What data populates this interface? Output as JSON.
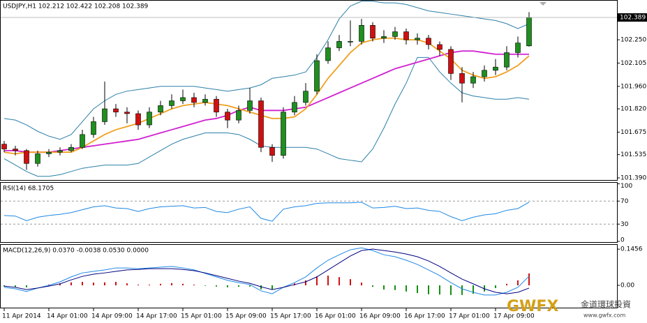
{
  "header": "USDJPY,H1  102.212 102.422 102.208 102.389",
  "watermark": {
    "brand": "GWFX",
    "name": "金道環球投資",
    "url": "www.gwfx.com"
  },
  "chart_data": [
    {
      "type": "candlestick",
      "x": [
        0,
        1,
        2,
        3,
        4,
        5,
        6,
        7,
        8,
        9,
        10,
        11,
        12,
        13,
        14,
        15,
        16,
        17,
        18,
        19,
        20,
        21,
        22,
        23,
        24,
        25,
        26,
        27,
        28,
        29,
        30,
        31,
        32,
        33,
        34,
        35,
        36,
        37,
        38,
        39,
        40,
        41,
        42,
        43,
        44,
        45,
        46,
        47
      ],
      "xlim": [
        -0.375,
        54.875
      ],
      "xticks": [
        {
          "value": 0,
          "label": "11 Apr 2014"
        },
        {
          "value": 4,
          "label": "14 Apr 01:00"
        },
        {
          "value": 8,
          "label": "14 Apr 09:00"
        },
        {
          "value": 12,
          "label": "14 Apr 17:00"
        },
        {
          "value": 16,
          "label": "15 Apr 01:00"
        },
        {
          "value": 20,
          "label": "15 Apr 09:00"
        },
        {
          "value": 24,
          "label": "15 Apr 17:00"
        },
        {
          "value": 28,
          "label": "16 Apr 01:00"
        },
        {
          "value": 32,
          "label": "16 Apr 09:00"
        },
        {
          "value": 36,
          "label": "16 Apr 17:00"
        },
        {
          "value": 40,
          "label": "17 Apr 01:00"
        },
        {
          "value": 44,
          "label": "17 Apr 09:00"
        }
      ],
      "open": [
        101.6,
        101.57,
        101.56,
        101.48,
        101.54,
        101.55,
        101.56,
        101.58,
        101.66,
        101.74,
        101.82,
        101.8,
        101.79,
        101.72,
        101.8,
        101.84,
        101.87,
        101.89,
        101.86,
        101.88,
        101.8,
        101.75,
        101.81,
        101.87,
        101.58,
        101.53,
        101.8,
        101.86,
        101.93,
        102.12,
        102.2,
        102.24,
        102.24,
        102.34,
        102.26,
        102.27,
        102.3,
        102.25,
        102.26,
        102.22,
        102.19,
        102.04,
        101.98,
        102.02,
        102.06,
        102.08,
        102.17,
        102.212
      ],
      "high": [
        101.62,
        101.59,
        101.57,
        101.56,
        101.57,
        101.58,
        101.6,
        101.69,
        101.77,
        101.99,
        101.85,
        101.83,
        101.81,
        101.83,
        101.87,
        101.91,
        101.94,
        101.92,
        101.91,
        101.9,
        101.82,
        101.84,
        101.95,
        101.89,
        101.6,
        101.83,
        101.9,
        101.98,
        102.16,
        102.24,
        102.28,
        102.37,
        102.38,
        102.36,
        102.31,
        102.33,
        102.32,
        102.29,
        102.28,
        102.24,
        102.21,
        102.08,
        102.05,
        102.09,
        102.13,
        102.21,
        102.27,
        102.422
      ],
      "low": [
        101.55,
        101.53,
        101.44,
        101.46,
        101.52,
        101.53,
        101.55,
        101.57,
        101.64,
        101.72,
        101.77,
        101.73,
        101.69,
        101.7,
        101.78,
        101.82,
        101.85,
        101.83,
        101.84,
        101.77,
        101.7,
        101.73,
        101.79,
        101.55,
        101.49,
        101.51,
        101.78,
        101.84,
        101.91,
        102.1,
        102.18,
        102.21,
        102.22,
        102.24,
        102.23,
        102.25,
        102.22,
        102.22,
        102.19,
        102.15,
        102.0,
        101.86,
        101.95,
        101.99,
        102.03,
        102.06,
        102.14,
        102.208
      ],
      "close": [
        101.57,
        101.56,
        101.48,
        101.54,
        101.55,
        101.56,
        101.58,
        101.66,
        101.74,
        101.82,
        101.8,
        101.79,
        101.72,
        101.8,
        101.84,
        101.87,
        101.89,
        101.86,
        101.88,
        101.8,
        101.75,
        101.81,
        101.87,
        101.58,
        101.53,
        101.8,
        101.86,
        101.93,
        102.12,
        102.2,
        102.24,
        102.24,
        102.34,
        102.26,
        102.27,
        102.3,
        102.25,
        102.26,
        102.22,
        102.19,
        102.04,
        101.98,
        102.02,
        102.06,
        102.08,
        102.17,
        102.23,
        102.389
      ],
      "up_color": "#1f8f1f",
      "down_color": "#d01010",
      "lines": [
        {
          "color": "#2b7fa8",
          "values": [
            101.76,
            101.75,
            101.72,
            101.68,
            101.65,
            101.63,
            101.66,
            101.74,
            101.82,
            101.87,
            101.91,
            101.93,
            101.94,
            101.95,
            101.96,
            101.96,
            101.96,
            101.96,
            101.95,
            101.94,
            101.93,
            101.94,
            101.95,
            101.97,
            102.01,
            102.02,
            102.03,
            102.05,
            102.14,
            102.25,
            102.38,
            102.46,
            102.49,
            102.49,
            102.48,
            102.48,
            102.47,
            102.45,
            102.43,
            102.42,
            102.41,
            102.4,
            102.39,
            102.38,
            102.37,
            102.35,
            102.32,
            102.35
          ]
        },
        {
          "color": "#2b7fa8",
          "values": [
            101.51,
            101.47,
            101.43,
            101.4,
            101.4,
            101.41,
            101.43,
            101.45,
            101.46,
            101.47,
            101.47,
            101.47,
            101.48,
            101.52,
            101.56,
            101.6,
            101.63,
            101.65,
            101.67,
            101.67,
            101.67,
            101.66,
            101.63,
            101.59,
            101.58,
            101.58,
            101.58,
            101.58,
            101.57,
            101.54,
            101.51,
            101.5,
            101.49,
            101.57,
            101.7,
            101.85,
            101.98,
            102.14,
            102.14,
            102.05,
            101.98,
            101.92,
            101.9,
            101.89,
            101.88,
            101.88,
            101.89,
            101.88
          ]
        },
        {
          "color": "#d020d0",
          "values": [
            101.56,
            101.56,
            101.55,
            101.55,
            101.55,
            101.56,
            101.57,
            101.58,
            101.59,
            101.6,
            101.61,
            101.62,
            101.63,
            101.65,
            101.67,
            101.69,
            101.71,
            101.73,
            101.75,
            101.76,
            101.78,
            101.81,
            101.83,
            101.81,
            101.81,
            101.81,
            101.82,
            101.83,
            101.86,
            101.89,
            101.92,
            101.95,
            101.98,
            102.01,
            102.04,
            102.07,
            102.09,
            102.11,
            102.13,
            102.15,
            102.17,
            102.18,
            102.18,
            102.17,
            102.16,
            102.16,
            102.16,
            102.16
          ]
        },
        {
          "color": "#f0a020",
          "values": [
            101.55,
            101.54,
            101.55,
            101.55,
            101.55,
            101.55,
            101.55,
            101.58,
            101.62,
            101.66,
            101.69,
            101.71,
            101.73,
            101.76,
            101.79,
            101.82,
            101.84,
            101.85,
            101.86,
            101.85,
            101.84,
            101.82,
            101.8,
            101.78,
            101.76,
            101.76,
            101.77,
            101.82,
            101.91,
            102.01,
            102.09,
            102.17,
            102.23,
            102.25,
            102.26,
            102.26,
            102.25,
            102.25,
            102.23,
            102.18,
            102.13,
            102.06,
            102.03,
            102.01,
            102.02,
            102.05,
            102.09,
            102.15
          ]
        }
      ],
      "ylim": [
        101.377,
        102.489
      ],
      "yticks": [
        {
          "value": 102.25,
          "label": "102.250"
        },
        102.105,
        {
          "value": 101.96,
          "label": "101.960"
        },
        {
          "value": 101.82,
          "label": "101.820"
        },
        101.675,
        101.535,
        {
          "value": 101.39,
          "label": "101.390"
        }
      ],
      "last_price": 102.389
    },
    {
      "type": "line",
      "title": "RSI(14) 68.1705",
      "color": "#1e88e5",
      "values": [
        45,
        44,
        36,
        42,
        45,
        47,
        50,
        55,
        60,
        62,
        58,
        57,
        52,
        57,
        60,
        61,
        62,
        58,
        59,
        52,
        50,
        56,
        60,
        40,
        35,
        56,
        60,
        62,
        66,
        67,
        67,
        67,
        68,
        58,
        59,
        61,
        57,
        58,
        54,
        52,
        43,
        36,
        42,
        46,
        48,
        54,
        57,
        68.1705
      ],
      "ylim": [
        0,
        100
      ],
      "yticks": [
        100,
        70,
        30,
        0
      ],
      "grid": "dashed"
    },
    {
      "type": "bar",
      "title": "MACD(12,26,9) 0.0370 -0.0038 0.0530 0.0000",
      "up_color": "#d01010",
      "down_color": "#119011",
      "values": [
        -0.005,
        -0.006,
        -0.008,
        0.0,
        0.003,
        0.008,
        0.012,
        0.014,
        0.011,
        0.012,
        0.014,
        0.008,
        0.003,
        0.003,
        0.006,
        0.009,
        0.006,
        0.003,
        -0.002,
        -0.005,
        -0.008,
        -0.006,
        -0.005,
        -0.016,
        -0.017,
        0.0,
        0.008,
        0.02,
        0.036,
        0.039,
        0.033,
        0.025,
        0.011,
        -0.006,
        -0.017,
        -0.019,
        -0.025,
        -0.031,
        -0.036,
        -0.037,
        -0.039,
        -0.039,
        -0.034,
        -0.025,
        -0.011,
        0.006,
        0.02,
        0.048
      ],
      "lines": [
        {
          "color": "#1e88e5",
          "values": [
            -0.008,
            -0.014,
            -0.025,
            -0.011,
            0.0,
            0.014,
            0.034,
            0.05,
            0.056,
            0.062,
            0.07,
            0.07,
            0.067,
            0.07,
            0.073,
            0.076,
            0.07,
            0.062,
            0.048,
            0.034,
            0.02,
            0.011,
            0.003,
            -0.022,
            -0.034,
            -0.008,
            0.011,
            0.034,
            0.07,
            0.101,
            0.123,
            0.143,
            0.151,
            0.14,
            0.123,
            0.115,
            0.101,
            0.084,
            0.062,
            0.039,
            0.011,
            -0.014,
            -0.028,
            -0.039,
            -0.039,
            -0.028,
            -0.008,
            0.037
          ]
        },
        {
          "color": "#000080",
          "values": [
            -0.003,
            -0.008,
            -0.017,
            -0.011,
            -0.003,
            0.006,
            0.022,
            0.036,
            0.045,
            0.05,
            0.056,
            0.062,
            0.064,
            0.067,
            0.067,
            0.067,
            0.064,
            0.059,
            0.05,
            0.039,
            0.028,
            0.017,
            0.008,
            -0.006,
            -0.017,
            -0.008,
            0.003,
            0.014,
            0.034,
            0.062,
            0.09,
            0.118,
            0.14,
            0.146,
            0.14,
            0.134,
            0.126,
            0.115,
            0.098,
            0.076,
            0.05,
            0.025,
            0.006,
            -0.014,
            -0.028,
            -0.034,
            -0.028,
            -0.011
          ]
        }
      ],
      "ylim": [
        -0.087,
        0.16
      ],
      "yticks": [
        0.1456,
        {
          "value": 0,
          "label": "0.00"
        }
      ]
    }
  ]
}
